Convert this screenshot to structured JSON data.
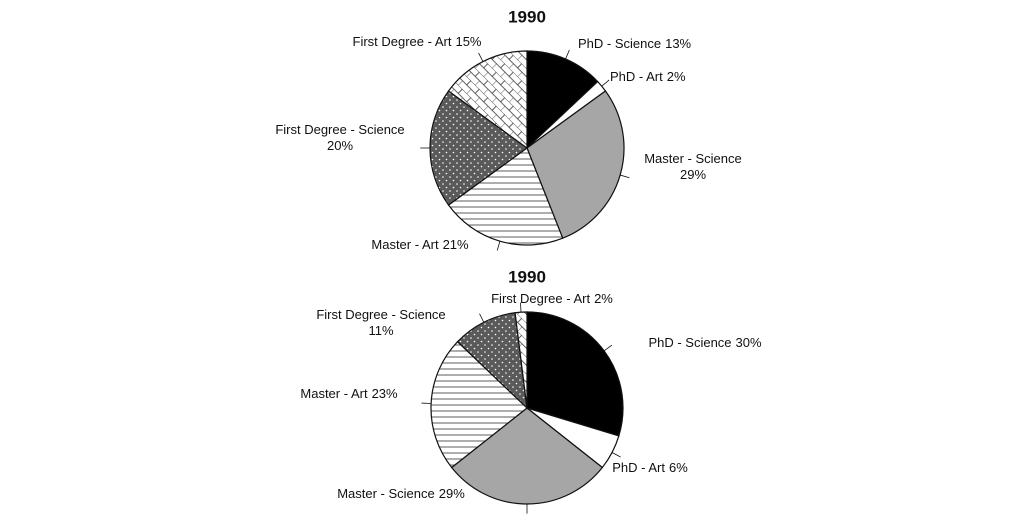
{
  "chart_data": [
    {
      "type": "pie",
      "title": "1990",
      "categories": [
        "PhD - Science",
        "PhD - Art",
        "Master - Science",
        "Master - Art",
        "First Degree - Science",
        "First Degree - Art"
      ],
      "values": [
        13,
        2,
        29,
        21,
        20,
        15
      ],
      "value_labels": [
        "13%",
        "2%",
        "29%",
        "21%",
        "20%",
        "15%"
      ]
    },
    {
      "type": "pie",
      "title": "1990",
      "categories": [
        "PhD - Science",
        "PhD - Art",
        "Master - Science",
        "Master - Art",
        "First Degree - Science",
        "First Degree - Art"
      ],
      "values": [
        30,
        6,
        29,
        23,
        11,
        2
      ],
      "value_labels": [
        "30%",
        "6%",
        "29%",
        "23%",
        "11%",
        "2%"
      ]
    }
  ]
}
